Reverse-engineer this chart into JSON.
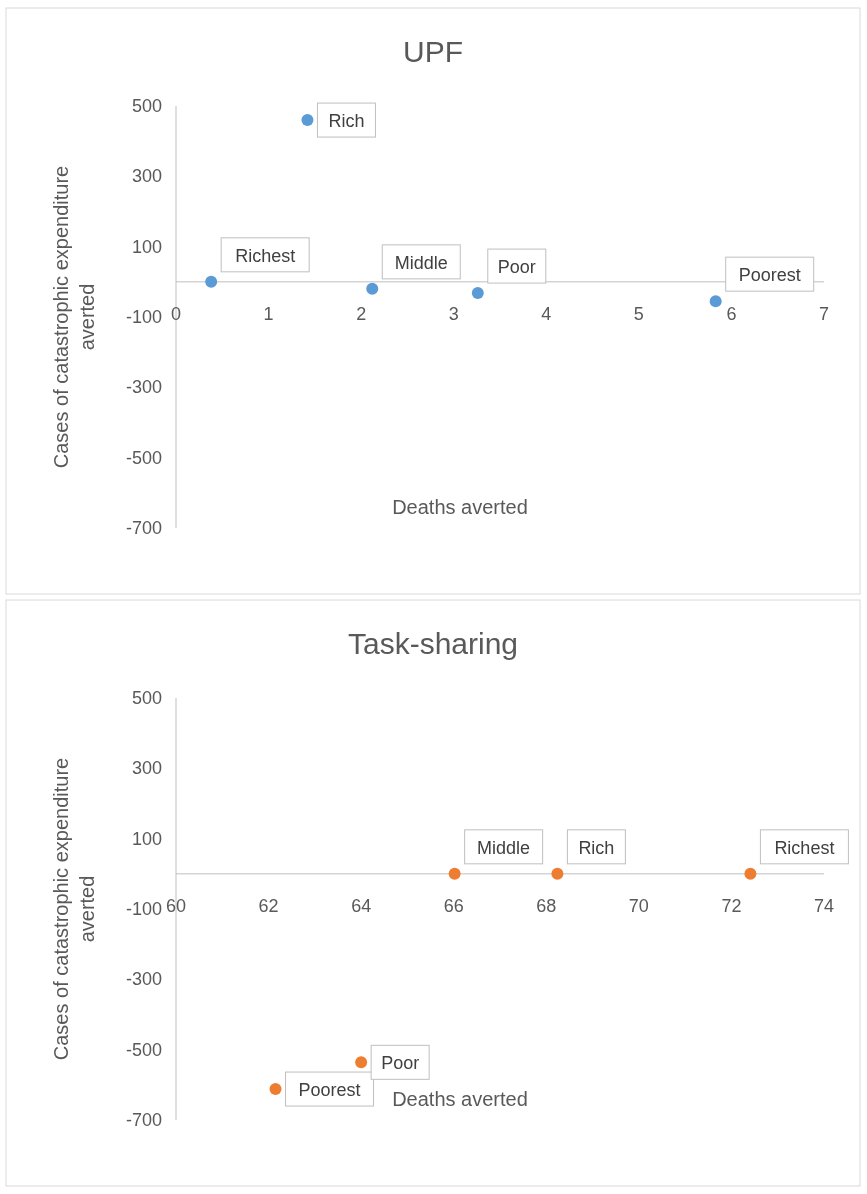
{
  "chart_data": [
    {
      "type": "scatter",
      "title": "UPF",
      "xlabel": "Deaths averted",
      "ylabel": "Cases of catastrophic expenditure averted",
      "xlim": [
        0,
        7
      ],
      "xticks": [
        0,
        1,
        2,
        3,
        4,
        5,
        6,
        7
      ],
      "ylim": [
        -700,
        500
      ],
      "yticks": [
        -700,
        -500,
        -300,
        -100,
        100,
        300,
        500
      ],
      "grid": false,
      "marker": "circle",
      "series": [
        {
          "color": "#5b9bd5",
          "x": [
            0.38,
            1.42,
            2.12,
            3.26,
            5.83
          ],
          "values": [
            0,
            460,
            -20,
            -32,
            -55
          ]
        }
      ],
      "annotations": [
        {
          "text": "Richest",
          "x": 0.38,
          "y": 0
        },
        {
          "text": "Rich",
          "x": 1.42,
          "y": 460
        },
        {
          "text": "Middle",
          "x": 2.12,
          "y": -20
        },
        {
          "text": "Poor",
          "x": 3.26,
          "y": -32
        },
        {
          "text": "Poorest",
          "x": 5.83,
          "y": -55
        }
      ]
    },
    {
      "type": "scatter",
      "title": "Task-sharing",
      "xlabel": "Deaths averted",
      "ylabel": "Cases of catastrophic expenditure averted",
      "xlim": [
        60,
        74
      ],
      "xticks": [
        60,
        62,
        64,
        66,
        68,
        70,
        72,
        74
      ],
      "ylim": [
        -700,
        500
      ],
      "yticks": [
        -700,
        -500,
        -300,
        -100,
        100,
        300,
        500
      ],
      "grid": false,
      "marker": "circle",
      "series": [
        {
          "color": "#ed7d31",
          "x": [
            62.15,
            64.0,
            66.02,
            68.24,
            72.41
          ],
          "values": [
            -612,
            -536,
            0,
            0,
            0
          ]
        }
      ],
      "annotations": [
        {
          "text": "Poorest",
          "x": 62.15,
          "y": -612
        },
        {
          "text": "Poor",
          "x": 64.0,
          "y": -536
        },
        {
          "text": "Middle",
          "x": 66.02,
          "y": 0
        },
        {
          "text": "Rich",
          "x": 68.24,
          "y": 0
        },
        {
          "text": "Richest",
          "x": 72.41,
          "y": 0
        }
      ]
    }
  ]
}
